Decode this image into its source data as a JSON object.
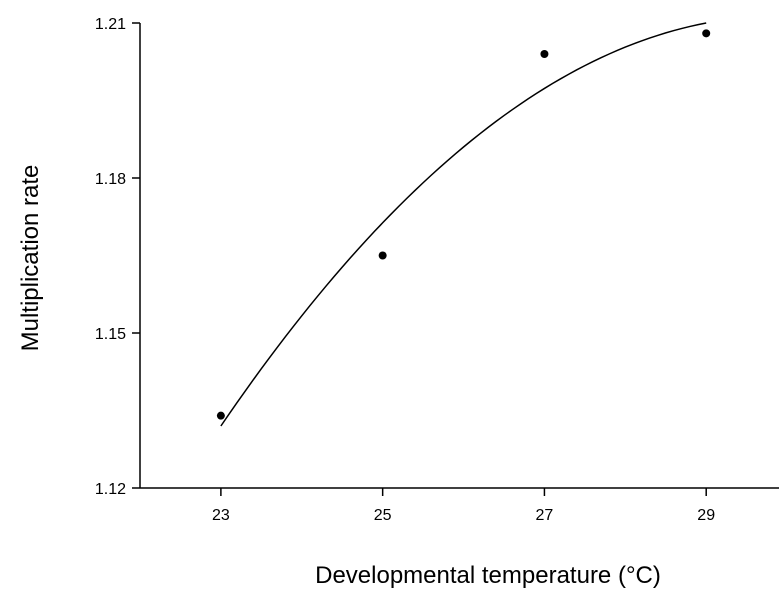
{
  "chart_data": {
    "type": "scatter",
    "xlabel": "Developmental temperature (°C)",
    "ylabel": "Multiplication rate",
    "xlim": [
      22,
      29.9
    ],
    "ylim": [
      1.12,
      1.21
    ],
    "xticks": [
      23,
      25,
      27,
      29
    ],
    "xtick_labels": [
      "23",
      "25",
      "27",
      "29"
    ],
    "yticks": [
      1.12,
      1.15,
      1.18,
      1.21
    ],
    "ytick_labels": [
      "1.12",
      "1.15",
      "1.18",
      "1.21"
    ],
    "grid": false,
    "series": [
      {
        "points": [
          {
            "x": 23,
            "y": 1.134
          },
          {
            "x": 25,
            "y": 1.165
          },
          {
            "x": 27,
            "y": 1.204
          },
          {
            "x": 29,
            "y": 1.208
          }
        ]
      }
    ],
    "fit_curve": {
      "kind": "quadratic",
      "x_range": [
        23,
        29
      ],
      "points": [
        {
          "x": 23,
          "y": 1.132
        },
        {
          "x": 26,
          "y": 1.186
        },
        {
          "x": 29,
          "y": 1.21
        }
      ]
    }
  }
}
